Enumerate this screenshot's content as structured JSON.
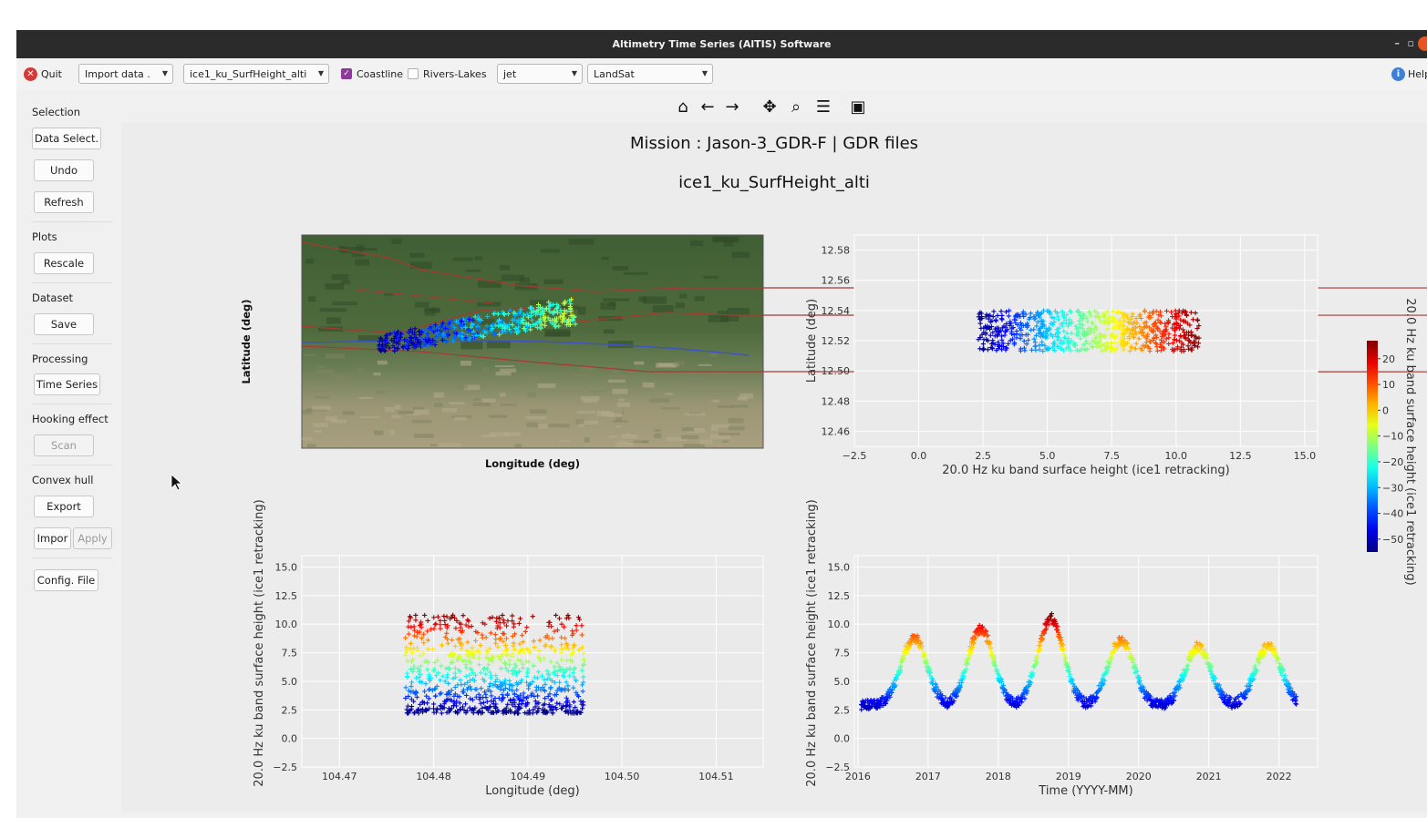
{
  "window": {
    "title": "Altimetry Time Series (AlTIS) Software",
    "min": "–",
    "max": "▫"
  },
  "toolbar": {
    "quit_label": "Quit",
    "import_label": "Import data .",
    "variable_value": "ice1_ku_SurfHeight_alti",
    "coastline_label": "Coastline",
    "coastline_checked": true,
    "rivers_label": "Rivers-Lakes",
    "rivers_checked": false,
    "colormap_value": "jet",
    "basemap_value": "LandSat",
    "help_label": "Help"
  },
  "navbar": {
    "icons": [
      "home-icon",
      "back-arrow-icon",
      "forward-arrow-icon",
      "pan-icon",
      "zoom-icon",
      "configure-icon",
      "save-icon"
    ]
  },
  "sidebar": {
    "selection_title": "Selection",
    "data_select_label": "Data Select.",
    "undo_label": "Undo",
    "refresh_label": "Refresh",
    "plots_title": "Plots",
    "rescale_label": "Rescale",
    "dataset_title": "Dataset",
    "save_label": "Save",
    "processing_title": "Processing",
    "time_series_label": "Time Series",
    "hooking_title": "Hooking effect",
    "scan_label": "Scan",
    "convex_title": "Convex hull",
    "export_label": "Export",
    "import_label": "Impor",
    "apply_label": "Apply",
    "config_label": "Config. File"
  },
  "figure": {
    "suptitle": "Mission : Jason-3_GDR-F | GDR files",
    "subtitle": "ice1_ku_SurfHeight_alti",
    "colorbar_label": "20.0 Hz ku band surface height (ice1 retracking)",
    "colorbar_ticks": [
      "20",
      "10",
      "0",
      "−10",
      "−20",
      "−30",
      "−40",
      "−50"
    ]
  },
  "chart_data": [
    {
      "type": "scatter",
      "name": "map",
      "xlabel": "Longitude (deg)",
      "ylabel": "Latitude (deg)",
      "basemap": "LandSat",
      "colormap": "jet"
    },
    {
      "type": "scatter",
      "xlabel": "20.0 Hz ku band surface height (ice1 retracking)",
      "ylabel": "Latitude (deg)",
      "xlim": [
        -2.5,
        15.5
      ],
      "ylim": [
        12.45,
        12.59
      ],
      "xticks": [
        "−2.5",
        "0.0",
        "2.5",
        "5.0",
        "7.5",
        "10.0",
        "12.5",
        "15.0"
      ],
      "yticks": [
        "12.46",
        "12.48",
        "12.50",
        "12.52",
        "12.54",
        "12.56",
        "12.58"
      ],
      "x_range": [
        2.3,
        10.9
      ],
      "y_range": [
        12.513,
        12.54
      ],
      "grid": true
    },
    {
      "type": "scatter",
      "xlabel": "Longitude (deg)",
      "ylabel": "20.0 Hz ku band surface height (ice1 retracking)",
      "xlim": [
        104.466,
        104.515
      ],
      "ylim": [
        -2.5,
        16.0
      ],
      "xticks": [
        "104.47",
        "104.48",
        "104.49",
        "104.50",
        "104.51"
      ],
      "yticks": [
        "−2.5",
        "0.0",
        "2.5",
        "5.0",
        "7.5",
        "10.0",
        "12.5",
        "15.0"
      ],
      "x_range": [
        104.477,
        104.496
      ],
      "y_range": [
        2.2,
        11.0
      ],
      "grid": true
    },
    {
      "type": "scatter",
      "xlabel": "Time (YYYY-MM)",
      "ylabel": "20.0 Hz ku band surface height (ice1 retracking)",
      "xlim": [
        2015.95,
        2022.55
      ],
      "ylim": [
        -2.5,
        16.0
      ],
      "xticks": [
        "2016",
        "2017",
        "2018",
        "2019",
        "2020",
        "2021",
        "2022"
      ],
      "yticks": [
        "−2.5",
        "0.0",
        "2.5",
        "5.0",
        "7.5",
        "10.0",
        "12.5",
        "15.0"
      ],
      "peaks": [
        {
          "t": 2016.8,
          "h": 8.8
        },
        {
          "t": 2017.75,
          "h": 9.6
        },
        {
          "t": 2018.75,
          "h": 10.5
        },
        {
          "t": 2019.75,
          "h": 8.6
        },
        {
          "t": 2020.85,
          "h": 8.0
        },
        {
          "t": 2021.85,
          "h": 8.1
        }
      ],
      "base_level": 2.9,
      "grid": true
    }
  ]
}
